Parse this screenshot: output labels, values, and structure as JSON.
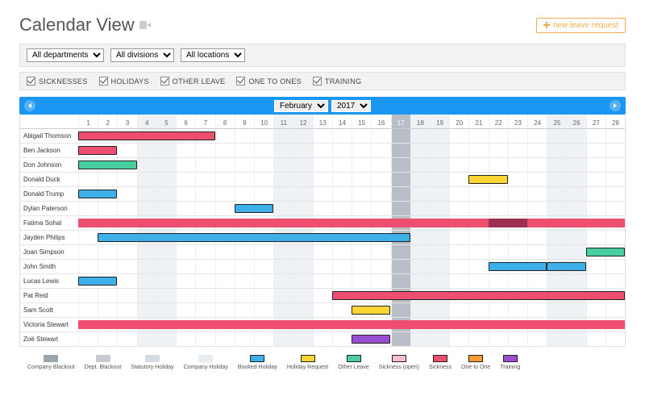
{
  "header": {
    "title": "Calendar View",
    "new_leave_label": "new leave request"
  },
  "filters": {
    "departments": {
      "label": "All departments"
    },
    "divisions": {
      "label": "All divisions"
    },
    "locations": {
      "label": "All locations"
    }
  },
  "toggles": [
    {
      "label": "SICKNESSES"
    },
    {
      "label": "HOLIDAYS"
    },
    {
      "label": "OTHER LEAVE"
    },
    {
      "label": "ONE TO ONES"
    },
    {
      "label": "TRAINING"
    }
  ],
  "calendar": {
    "month": "February",
    "year": "2017",
    "days_in_month": 28,
    "weekend_days": [
      4,
      5,
      11,
      12,
      18,
      19,
      25,
      26
    ],
    "today": 17
  },
  "colors": {
    "booked_holiday": "#3db0ea",
    "holiday_request": "#ffd633",
    "other_leave": "#49cf9f",
    "sickness": "#ee4e70",
    "sickness_open": "#f7c1cc",
    "one_to_one": "#ff9933",
    "training": "#9a4fd3",
    "company_blackout": "#9aa4ad",
    "dept_blackout": "#c4cad0",
    "statutory_holiday": "#d5dde3",
    "company_holiday": "#e6ecf0",
    "booked_border": "#222222",
    "today_col": "#b7bec6",
    "maroon": "#9d3050"
  },
  "people": [
    {
      "name": "Abigail Thomson",
      "bars": [
        {
          "start": 1,
          "end": 7,
          "color": "sickness",
          "border": true
        }
      ]
    },
    {
      "name": "Ben Jackson",
      "bars": [
        {
          "start": 1,
          "end": 2,
          "color": "sickness",
          "border": true
        }
      ]
    },
    {
      "name": "Don Johnson",
      "bars": [
        {
          "start": 1,
          "end": 3,
          "color": "other_leave",
          "border": true
        }
      ]
    },
    {
      "name": "Donald Duck",
      "bars": [
        {
          "start": 21,
          "end": 22,
          "color": "holiday_request",
          "border": true
        }
      ]
    },
    {
      "name": "Donald Trump",
      "bars": [
        {
          "start": 1,
          "end": 2,
          "color": "booked_holiday",
          "border": true
        }
      ]
    },
    {
      "name": "Dylan Paterson",
      "bars": [
        {
          "start": 9,
          "end": 10,
          "color": "booked_holiday",
          "border": true
        }
      ]
    },
    {
      "name": "Fatima Sohal",
      "bars": [
        {
          "start": 1,
          "end": 22,
          "color": "sickness",
          "border": false
        },
        {
          "start": 22,
          "end": 24,
          "color": "maroon",
          "border": false
        },
        {
          "start": 24,
          "end": 28,
          "color": "sickness",
          "border": false
        }
      ]
    },
    {
      "name": "Jayden Philips",
      "bars": [
        {
          "start": 2,
          "end": 17,
          "color": "booked_holiday",
          "border": true
        }
      ]
    },
    {
      "name": "Joan Simpson",
      "bars": [
        {
          "start": 27,
          "end": 28,
          "color": "other_leave",
          "border": true
        }
      ]
    },
    {
      "name": "John Smith",
      "bars": [
        {
          "start": 22,
          "end": 24,
          "color": "booked_holiday",
          "border": true
        },
        {
          "start": 25,
          "end": 26,
          "color": "booked_holiday",
          "border": true
        }
      ]
    },
    {
      "name": "Lucas Lewis",
      "bars": [
        {
          "start": 1,
          "end": 2,
          "color": "booked_holiday",
          "border": true
        }
      ]
    },
    {
      "name": "Pat Reid",
      "bars": [
        {
          "start": 14,
          "end": 28,
          "color": "sickness",
          "border": true
        }
      ]
    },
    {
      "name": "Sam Scott",
      "bars": [
        {
          "start": 15,
          "end": 16,
          "color": "holiday_request",
          "border": true
        }
      ]
    },
    {
      "name": "Victoria Stewart",
      "bars": [
        {
          "start": 1,
          "end": 28,
          "color": "sickness",
          "border": false
        }
      ]
    },
    {
      "name": "Zoë Stewart",
      "bars": [
        {
          "start": 15,
          "end": 16,
          "color": "training",
          "border": true
        }
      ]
    }
  ],
  "legend": [
    {
      "label": "Company Blackout",
      "color": "company_blackout"
    },
    {
      "label": "Dept. Blackout",
      "color": "dept_blackout"
    },
    {
      "label": "Statutory Holiday",
      "color": "statutory_holiday"
    },
    {
      "label": "Company Holiday",
      "color": "company_holiday"
    },
    {
      "label": "Booked Holiday",
      "color": "booked_holiday",
      "border": true
    },
    {
      "label": "Holiday Request",
      "color": "holiday_request",
      "border": true
    },
    {
      "label": "Other Leave",
      "color": "other_leave",
      "border": true
    },
    {
      "label": "Sickness (open)",
      "color": "sickness_open",
      "border": true
    },
    {
      "label": "Sickness",
      "color": "sickness",
      "border": true
    },
    {
      "label": "One to One",
      "color": "one_to_one",
      "border": true
    },
    {
      "label": "Training",
      "color": "training",
      "border": true
    }
  ]
}
